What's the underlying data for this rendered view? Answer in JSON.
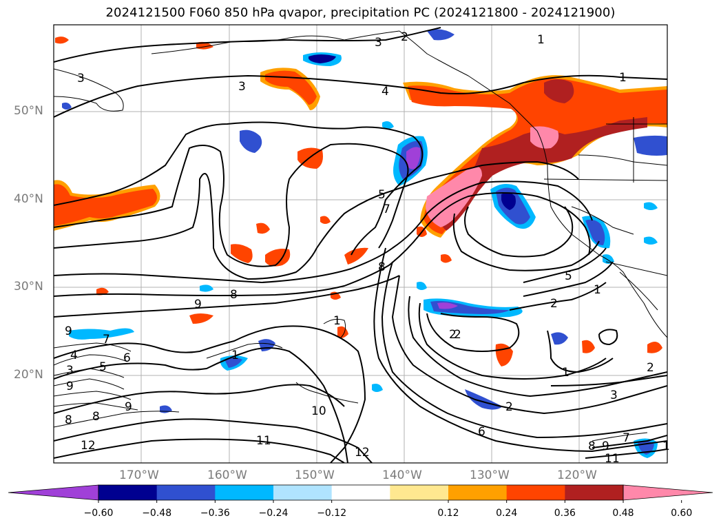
{
  "title": "2024121500 F060 850 hPa qvapor, precipitation PC (2024121800 - 2024121900)",
  "lat_labels": [
    "50°N",
    "40°N",
    "30°N",
    "20°N"
  ],
  "lon_labels": [
    "170°W",
    "160°W",
    "150°W",
    "140°W",
    "130°W",
    "120°W"
  ],
  "contour_labels": [
    "3",
    "2",
    "1",
    "3",
    "4",
    "1",
    "3",
    "5",
    "7",
    "8",
    "9",
    "8",
    "5",
    "2",
    "1",
    "2",
    "1",
    "2",
    "3",
    "6",
    "10",
    "11",
    "12",
    "9",
    "7",
    "6",
    "5",
    "4",
    "3",
    "9",
    "8",
    "8",
    "9",
    "12",
    "2",
    "1",
    "7",
    "8",
    "9",
    "11",
    "1",
    "2",
    "1"
  ],
  "colorbar": {
    "ticks": [
      "−0.60",
      "−0.48",
      "−0.36",
      "−0.24",
      "−0.12",
      "0.12",
      "0.24",
      "0.36",
      "0.48",
      "0.60"
    ],
    "colors": [
      "#a040d8",
      "#000090",
      "#3050d0",
      "#00b8ff",
      "#b0e4ff",
      "#ffffff",
      "#ffe890",
      "#ffa000",
      "#ff4400",
      "#b02020",
      "#ff88aa"
    ]
  }
}
